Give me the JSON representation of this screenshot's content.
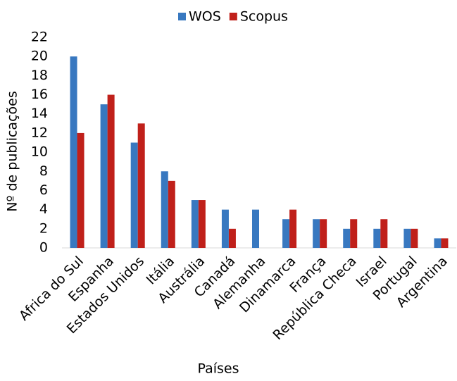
{
  "chart_data": {
    "type": "bar",
    "y_label": "Nº de publicações",
    "x_label": "Países",
    "categories": [
      "Africa do Sul",
      "Espanha",
      "Estados Unidos",
      "Itália",
      "Austrália",
      "Canadá",
      "Alemanha",
      "Dinamarca",
      "França",
      "República Checa",
      "Israel",
      "Portugal",
      "Argentina"
    ],
    "series": [
      {
        "name": "WOS",
        "color": "#3878c0",
        "values": [
          20,
          15,
          11,
          8,
          5,
          4,
          4,
          3,
          3,
          2,
          2,
          2,
          1
        ]
      },
      {
        "name": "Scopus",
        "color": "#c0201a",
        "values": [
          12,
          16,
          13,
          7,
          5,
          2,
          0,
          4,
          3,
          3,
          3,
          2,
          1
        ]
      }
    ],
    "ylim": [
      0,
      22
    ],
    "yticks": [
      0,
      2,
      4,
      6,
      8,
      10,
      12,
      14,
      16,
      18,
      20,
      22
    ],
    "grid": false,
    "legend": "top"
  }
}
